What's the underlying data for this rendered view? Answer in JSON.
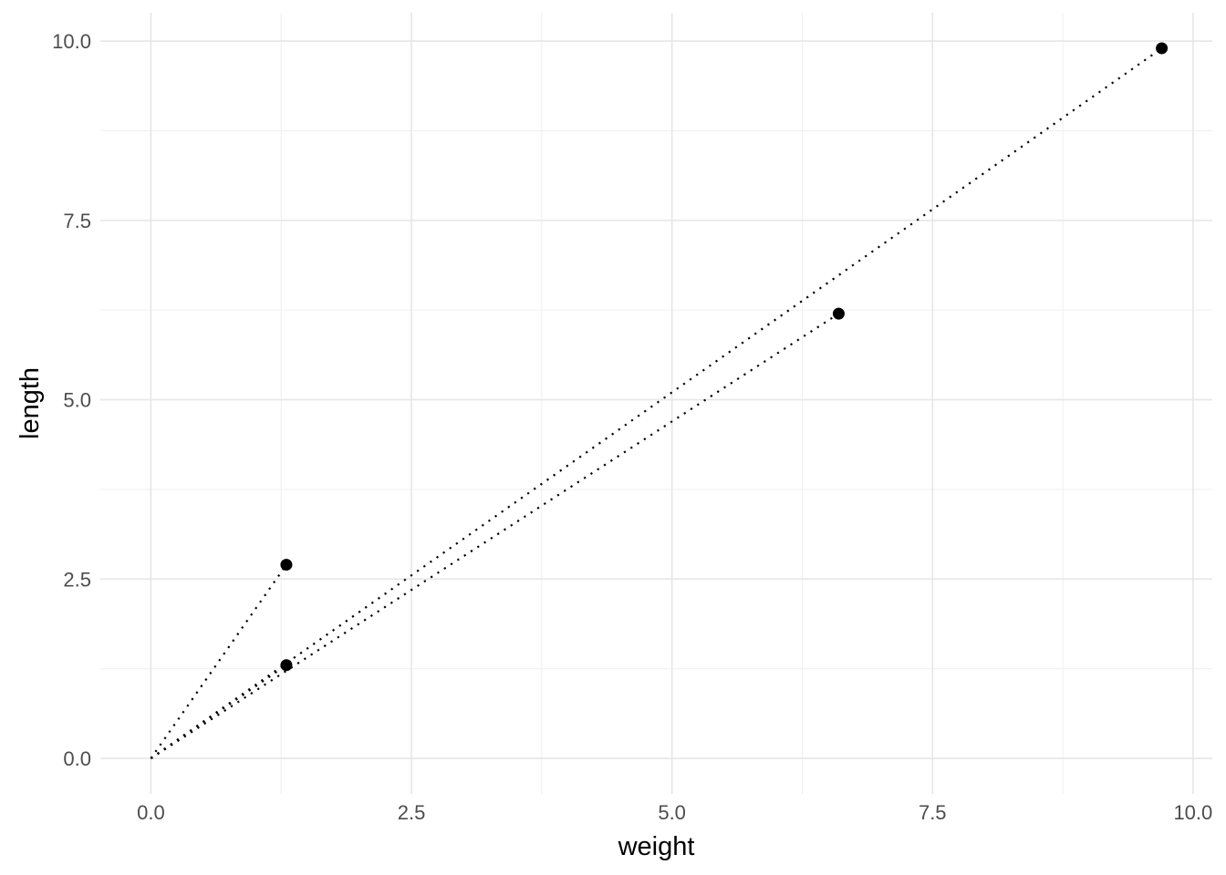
{
  "chart_data": {
    "type": "scatter",
    "title": "",
    "xlabel": "weight",
    "ylabel": "length",
    "x_ticks": [
      0.0,
      2.5,
      5.0,
      7.5,
      10.0
    ],
    "y_ticks": [
      0.0,
      2.5,
      5.0,
      7.5,
      10.0
    ],
    "x_tick_labels": [
      "0.0",
      "2.5",
      "5.0",
      "7.5",
      "10.0"
    ],
    "y_tick_labels": [
      "0.0",
      "2.5",
      "5.0",
      "7.5",
      "10.0"
    ],
    "x_minor_ticks": [
      1.25,
      3.75,
      6.25,
      8.75
    ],
    "y_minor_ticks": [
      1.25,
      3.75,
      6.25,
      8.75
    ],
    "xlim": [
      -0.485,
      10.185
    ],
    "ylim": [
      -0.495,
      10.395
    ],
    "grid": true,
    "legend": "none",
    "points": [
      {
        "weight": 1.3,
        "length": 2.7
      },
      {
        "weight": 1.3,
        "length": 1.3
      },
      {
        "weight": 6.6,
        "length": 6.2
      },
      {
        "weight": 9.7,
        "length": 9.9
      }
    ],
    "segments": [
      {
        "x1": 0,
        "y1": 0,
        "x2": 1.3,
        "y2": 2.7
      },
      {
        "x1": 0,
        "y1": 0,
        "x2": 1.3,
        "y2": 1.3
      },
      {
        "x1": 0,
        "y1": 0,
        "x2": 6.6,
        "y2": 6.2
      },
      {
        "x1": 0,
        "y1": 0,
        "x2": 9.7,
        "y2": 9.9
      }
    ],
    "line_style": "dotted",
    "colors": {
      "point": "#000000",
      "segment": "#000000",
      "grid_major": "#e6e6e6",
      "grid_minor": "#f0f0f0",
      "tick_text": "#4d4d4d",
      "axis_title": "#000000",
      "background": "#ffffff"
    }
  }
}
